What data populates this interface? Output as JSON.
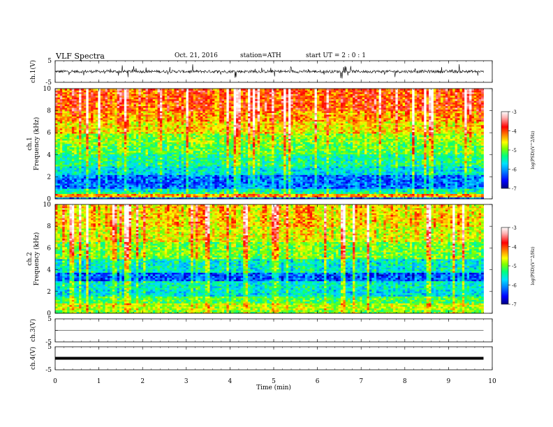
{
  "header": {
    "title": "VLF  Spectra",
    "date": "Oct. 21, 2016",
    "station": "station=ATH",
    "start": "start  UT  =   2  : 0  : 1"
  },
  "colors": {
    "colormap": [
      "#000080",
      "#0000ff",
      "#0080ff",
      "#00e0ff",
      "#00ff80",
      "#80ff00",
      "#ffff00",
      "#ff8000",
      "#ff0000",
      "#ffb0b0",
      "#ffffff"
    ],
    "waveform": "#000000"
  },
  "chart_data": [
    {
      "type": "line",
      "panel": "ch1-waveform",
      "ylabel": "ch.1(V)",
      "ytick_labels": [
        "5",
        "-5"
      ],
      "ylim": [
        -5,
        5
      ],
      "xlim": [
        0,
        10
      ],
      "x_end": 9.8,
      "trace_level": 0,
      "noise_amplitude": 1.1
    },
    {
      "type": "heatmap",
      "panel": "ch1-spectrogram",
      "ylabel": "ch.1\nFrequency  (kHz)",
      "yticks": [
        0,
        2,
        4,
        6,
        8,
        10
      ],
      "ytick_labels": [
        "0",
        "2",
        "4",
        "6",
        "8",
        "10"
      ],
      "ylim": [
        0,
        10
      ],
      "xlim": [
        0,
        10
      ],
      "x_end": 9.8,
      "colorbar": {
        "label": "log(PSD)(V^2/Hz)",
        "ticks": [
          -3,
          -4,
          -5,
          -6,
          -7
        ],
        "tick_labels": [
          "-3",
          "-4",
          "-5",
          "-6",
          "-7"
        ],
        "range": [
          -7,
          -3
        ]
      },
      "bands_log_psd": [
        {
          "f": [
            0,
            0.2
          ],
          "v": -6.2
        },
        {
          "f": [
            0.2,
            0.5
          ],
          "v": -4.3
        },
        {
          "f": [
            0.5,
            0.7
          ],
          "v": -5.3
        },
        {
          "f": [
            0.7,
            1.0
          ],
          "v": -5.6
        },
        {
          "f": [
            1.0,
            2.2
          ],
          "v": -6.2
        },
        {
          "f": [
            2.2,
            3.0
          ],
          "v": -5.7
        },
        {
          "f": [
            3.0,
            4.0
          ],
          "v": -5.4
        },
        {
          "f": [
            4.0,
            5.0
          ],
          "v": -5.1
        },
        {
          "f": [
            5.0,
            6.0
          ],
          "v": -4.9
        },
        {
          "f": [
            6.0,
            7.0
          ],
          "v": -4.5
        },
        {
          "f": [
            7.0,
            8.0
          ],
          "v": -4.2
        },
        {
          "f": [
            8.0,
            10.0
          ],
          "v": -3.9
        }
      ]
    },
    {
      "type": "heatmap",
      "panel": "ch2-spectrogram",
      "ylabel": "ch.2\nFrequency  (kHz)",
      "yticks": [
        0,
        2,
        4,
        6,
        8,
        10
      ],
      "ytick_labels": [
        "0",
        "2",
        "4",
        "6",
        "8",
        "10"
      ],
      "ylim": [
        0,
        10
      ],
      "xlim": [
        0,
        10
      ],
      "x_end": 9.8,
      "colorbar": {
        "label": "log(PSD)(V^2/Hz)",
        "ticks": [
          -3,
          -4,
          -5,
          -6,
          -7
        ],
        "tick_labels": [
          "-3",
          "-4",
          "-5",
          "-6",
          "-7"
        ],
        "range": [
          -7,
          -3
        ]
      },
      "bands_log_psd": [
        {
          "f": [
            0,
            0.3
          ],
          "v": -5.0
        },
        {
          "f": [
            0.3,
            1.0
          ],
          "v": -4.8
        },
        {
          "f": [
            1.0,
            1.6
          ],
          "v": -5.2
        },
        {
          "f": [
            1.6,
            2.2
          ],
          "v": -5.7
        },
        {
          "f": [
            2.2,
            3.0
          ],
          "v": -5.6
        },
        {
          "f": [
            3.0,
            3.8
          ],
          "v": -6.3
        },
        {
          "f": [
            3.8,
            5.0
          ],
          "v": -5.6
        },
        {
          "f": [
            5.0,
            6.5
          ],
          "v": -5.0
        },
        {
          "f": [
            6.5,
            8.0
          ],
          "v": -4.6
        },
        {
          "f": [
            8.0,
            10.0
          ],
          "v": -4.4
        }
      ]
    },
    {
      "type": "line",
      "panel": "ch3-waveform",
      "ylabel": "ch.3(V)",
      "ytick_labels": [
        "5",
        "-5"
      ],
      "ylim": [
        -5,
        5
      ],
      "xlim": [
        0,
        10
      ],
      "x_end": 9.8,
      "trace_level": 0,
      "trace_width": 0.6
    },
    {
      "type": "line",
      "panel": "ch4-waveform",
      "ylabel": "ch.4(V)",
      "ytick_labels": [
        "5",
        "-5"
      ],
      "ylim": [
        -5,
        5
      ],
      "xlim": [
        0,
        10
      ],
      "x_end": 9.8,
      "trace_level": 0,
      "trace_width": 4,
      "xlabel": "Time  (min)",
      "xticks": [
        0,
        1,
        2,
        3,
        4,
        5,
        6,
        7,
        8,
        9,
        10
      ],
      "xtick_labels": [
        "0",
        "1",
        "2",
        "3",
        "4",
        "5",
        "6",
        "7",
        "8",
        "9",
        "10"
      ]
    }
  ]
}
